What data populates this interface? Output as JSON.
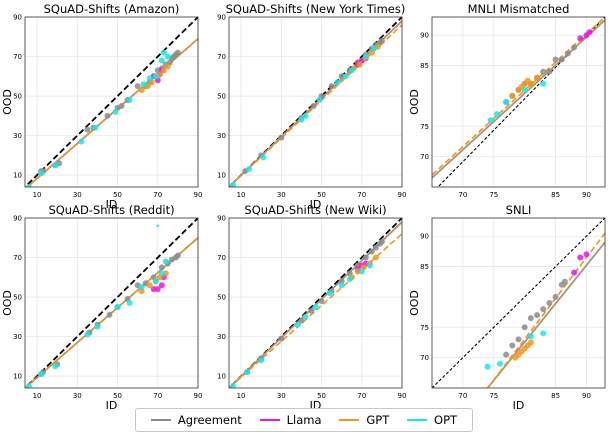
{
  "legend": {
    "items": [
      {
        "label": "Agreement",
        "color": "#8c8c8c"
      },
      {
        "label": "Llama",
        "color": "#e619e6"
      },
      {
        "label": "GPT",
        "color": "#f0961e"
      },
      {
        "label": "OPT",
        "color": "#19e6e6"
      }
    ]
  },
  "chart_data": [
    {
      "type": "scatter",
      "title": "SQuAD-Shifts (Amazon)",
      "xlabel": "ID",
      "ylabel": "OOD",
      "xlim": [
        4,
        90
      ],
      "ylim": [
        4,
        90
      ],
      "xticks": [
        10,
        30,
        50,
        70,
        90
      ],
      "yticks": [
        10,
        30,
        50,
        70,
        90
      ],
      "fit": {
        "gray": [
          [
            4,
            3
          ],
          [
            90,
            79
          ]
        ],
        "orange": [
          [
            4,
            3
          ],
          [
            90,
            79
          ]
        ]
      },
      "series": [
        {
          "name": "Agreement",
          "color": "#8c8c8c",
          "x": [
            12,
            13,
            19,
            21,
            35,
            38,
            45,
            50,
            52,
            55,
            60,
            64,
            66,
            68,
            70,
            72,
            74,
            76,
            77,
            78,
            79,
            80
          ],
          "y": [
            12,
            12,
            15,
            16,
            33,
            34,
            40,
            44,
            45,
            48,
            55,
            55,
            57,
            60,
            63,
            64,
            66,
            67,
            69,
            70,
            71,
            72
          ]
        },
        {
          "name": "Llama",
          "color": "#e619e6",
          "x": [
            68,
            70,
            71,
            72
          ],
          "y": [
            60,
            58,
            61,
            63
          ]
        },
        {
          "name": "GPT",
          "color": "#f0961e",
          "x": [
            62,
            65,
            67,
            69,
            71,
            73,
            75
          ],
          "y": [
            53,
            55,
            57,
            60,
            61,
            63,
            65
          ]
        },
        {
          "name": "OPT",
          "color": "#19e6e6",
          "x": [
            6,
            12,
            19,
            32,
            39,
            49,
            56,
            63,
            66,
            69,
            72,
            73,
            75
          ],
          "y": [
            4,
            11,
            15,
            27,
            34,
            42,
            48,
            56,
            59,
            60,
            68,
            72,
            70
          ]
        }
      ]
    },
    {
      "type": "scatter",
      "title": "SQuAD-Shifts (New York Times)",
      "xlabel": "ID",
      "ylabel": "",
      "xlim": [
        4,
        90
      ],
      "ylim": [
        4,
        90
      ],
      "xticks": [
        10,
        30,
        50,
        70,
        90
      ],
      "yticks": [
        10,
        30,
        50,
        70,
        90
      ],
      "fit": {
        "gray": [
          [
            4,
            4
          ],
          [
            90,
            88
          ]
        ],
        "orange": [
          [
            4,
            4
          ],
          [
            90,
            86
          ]
        ]
      },
      "series": [
        {
          "name": "Agreement",
          "color": "#8c8c8c",
          "x": [
            12,
            20,
            30,
            40,
            46,
            50,
            55,
            60,
            64,
            68,
            72,
            75,
            77,
            79,
            80
          ],
          "y": [
            12,
            20,
            29,
            39,
            45,
            50,
            55,
            60,
            63,
            67,
            71,
            74,
            76,
            77,
            78
          ]
        },
        {
          "name": "Llama",
          "color": "#e619e6",
          "x": [
            68,
            70,
            72
          ],
          "y": [
            66,
            68,
            69
          ]
        },
        {
          "name": "GPT",
          "color": "#f0961e",
          "x": [
            66,
            69,
            72,
            75,
            78
          ],
          "y": [
            64,
            66,
            69,
            72,
            75
          ]
        },
        {
          "name": "OPT",
          "color": "#19e6e6",
          "x": [
            6,
            14,
            21,
            40,
            42,
            49,
            58,
            62,
            65,
            72,
            76
          ],
          "y": [
            5,
            13,
            19,
            38,
            40,
            48,
            57,
            60,
            63,
            70,
            74
          ]
        }
      ]
    },
    {
      "type": "scatter",
      "title": "MNLI Mismatched",
      "xlabel": "",
      "ylabel": "OOD",
      "xlim": [
        65,
        93
      ],
      "ylim": [
        65,
        93
      ],
      "xticks": [
        70,
        75,
        85,
        90
      ],
      "yticks": [
        70,
        75,
        85,
        90
      ],
      "fit": {
        "gray": [
          [
            65,
            66.5
          ],
          [
            93,
            92.5
          ]
        ],
        "orange": [
          [
            65,
            67
          ],
          [
            93,
            93
          ]
        ],
        "blackDash": [
          [
            65,
            64
          ],
          [
            93,
            93
          ]
        ]
      },
      "series": [
        {
          "name": "Agreement",
          "color": "#8c8c8c",
          "x": [
            77,
            78,
            79,
            80,
            81,
            82,
            83,
            84,
            85,
            86,
            87,
            88
          ],
          "y": [
            79,
            80,
            81,
            82,
            82,
            83,
            84,
            84,
            86,
            86,
            87,
            88
          ]
        },
        {
          "name": "Llama",
          "color": "#e619e6",
          "x": [
            89,
            90,
            90.5
          ],
          "y": [
            89.5,
            90,
            90.5
          ]
        },
        {
          "name": "GPT",
          "color": "#f0961e",
          "x": [
            78,
            79,
            79.5,
            80,
            80.5,
            81,
            82
          ],
          "y": [
            80,
            81,
            81.5,
            82,
            82.5,
            82,
            83
          ]
        },
        {
          "name": "OPT",
          "color": "#19e6e6",
          "x": [
            74.5,
            75.5,
            77,
            80,
            83
          ],
          "y": [
            76,
            77,
            79,
            81,
            82
          ]
        }
      ]
    },
    {
      "type": "scatter",
      "title": "SQuAD-Shifts (Reddit)",
      "xlabel": "ID",
      "ylabel": "OOD",
      "xlim": [
        4,
        90
      ],
      "ylim": [
        4,
        90
      ],
      "xticks": [
        10,
        30,
        50,
        70,
        90
      ],
      "yticks": [
        10,
        30,
        50,
        70,
        90
      ],
      "fit": {
        "gray": [
          [
            4,
            4
          ],
          [
            90,
            80
          ]
        ],
        "orange": [
          [
            4,
            4
          ],
          [
            90,
            80
          ]
        ]
      },
      "series": [
        {
          "name": "Agreement",
          "color": "#8c8c8c",
          "x": [
            12,
            13,
            20,
            36,
            40,
            46,
            50,
            55,
            60,
            64,
            68,
            72,
            75,
            77,
            79,
            80
          ],
          "y": [
            11,
            12,
            16,
            32,
            36,
            41,
            45,
            49,
            56,
            57,
            60,
            65,
            67,
            69,
            70,
            71
          ]
        },
        {
          "name": "Llama",
          "color": "#e619e6",
          "x": [
            68,
            70,
            72,
            73
          ],
          "y": [
            54,
            54,
            56,
            60
          ]
        },
        {
          "name": "GPT",
          "color": "#f0961e",
          "x": [
            62,
            66,
            69,
            71,
            74
          ],
          "y": [
            53,
            56,
            58,
            60,
            62
          ]
        },
        {
          "name": "OPT",
          "color": "#19e6e6",
          "x": [
            6,
            12,
            19,
            35,
            40,
            50,
            56,
            62,
            69,
            70,
            72,
            74
          ],
          "y": [
            5,
            11,
            15,
            31,
            35,
            45,
            47,
            55,
            58,
            86,
            62,
            68
          ]
        }
      ]
    },
    {
      "type": "scatter",
      "title": "SQuAD-Shifts (New Wiki)",
      "xlabel": "ID",
      "ylabel": "",
      "xlim": [
        4,
        90
      ],
      "ylim": [
        4,
        90
      ],
      "xticks": [
        10,
        30,
        50,
        70,
        90
      ],
      "yticks": [
        10,
        30,
        50,
        70,
        90
      ],
      "fit": {
        "gray": [
          [
            4,
            4
          ],
          [
            90,
            88
          ]
        ],
        "orange": [
          [
            4,
            4
          ],
          [
            90,
            82
          ]
        ]
      },
      "series": [
        {
          "name": "Agreement",
          "color": "#8c8c8c",
          "x": [
            13,
            20,
            30,
            40,
            45,
            50,
            55,
            60,
            64,
            68,
            72,
            75,
            77,
            79,
            80
          ],
          "y": [
            12,
            19,
            29,
            38,
            43,
            48,
            53,
            58,
            62,
            66,
            70,
            73,
            75,
            77,
            78
          ]
        },
        {
          "name": "Llama",
          "color": "#e619e6",
          "x": [
            68,
            70,
            72
          ],
          "y": [
            64,
            66,
            67
          ]
        },
        {
          "name": "GPT",
          "color": "#f0961e",
          "x": [
            65,
            68,
            71,
            74,
            77
          ],
          "y": [
            60,
            63,
            65,
            67,
            70
          ]
        },
        {
          "name": "OPT",
          "color": "#19e6e6",
          "x": [
            6,
            13,
            20,
            38,
            42,
            47,
            54,
            60,
            64,
            70,
            74
          ],
          "y": [
            5,
            12,
            18,
            36,
            40,
            45,
            52,
            56,
            59,
            63,
            66
          ]
        }
      ]
    },
    {
      "type": "scatter",
      "title": "SNLI",
      "xlabel": "ID",
      "ylabel": "OOD",
      "xlim": [
        65,
        93
      ],
      "ylim": [
        65,
        93
      ],
      "xticks": [
        70,
        75,
        85,
        90
      ],
      "yticks": [
        70,
        75,
        85,
        90
      ],
      "fit": {
        "gray": [
          [
            74,
            65
          ],
          [
            93,
            89
          ]
        ],
        "orange": [
          [
            74,
            65
          ],
          [
            93,
            90.5
          ]
        ],
        "blackDash": [
          [
            65,
            65
          ],
          [
            93,
            93
          ]
        ]
      },
      "series": [
        {
          "name": "Agreement",
          "color": "#8c8c8c",
          "x": [
            77,
            78,
            79,
            80,
            81,
            82,
            83,
            84,
            85,
            86,
            86.5
          ],
          "y": [
            70.5,
            72,
            73,
            75,
            76.5,
            77,
            78,
            79,
            80,
            82,
            82.5
          ]
        },
        {
          "name": "Llama",
          "color": "#e619e6",
          "x": [
            88,
            89,
            90
          ],
          "y": [
            84,
            86.5,
            87
          ]
        },
        {
          "name": "GPT",
          "color": "#f0961e",
          "x": [
            78.5,
            79,
            79.5,
            80,
            80.5,
            81
          ],
          "y": [
            70,
            70.5,
            71,
            71.5,
            72,
            72.5
          ]
        },
        {
          "name": "OPT",
          "color": "#19e6e6",
          "x": [
            74,
            76,
            81,
            83
          ],
          "y": [
            68.5,
            69,
            73.5,
            74
          ]
        }
      ]
    }
  ]
}
